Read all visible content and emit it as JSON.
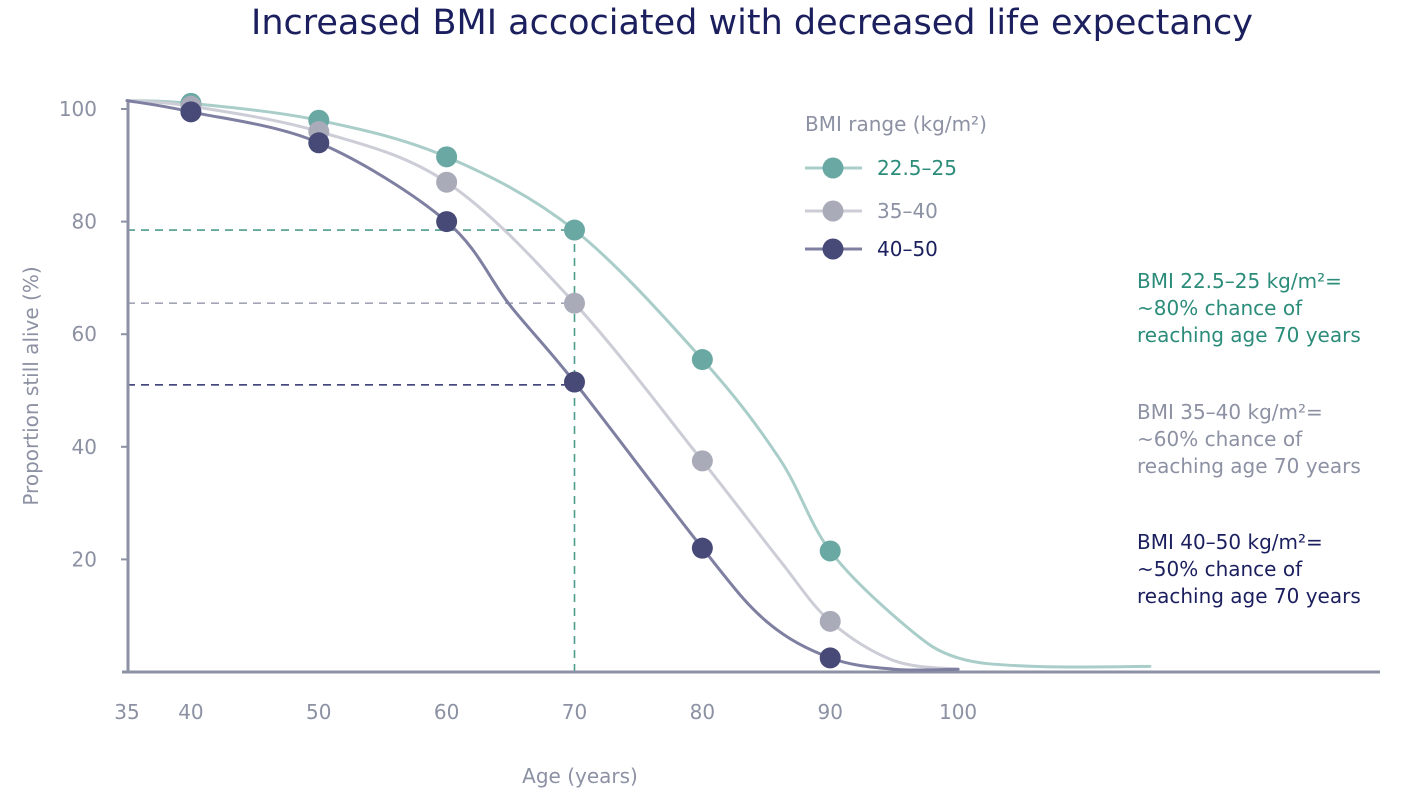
{
  "chart_data": {
    "type": "line",
    "title": "Increased BMI accociated with decreased life expectancy",
    "xlabel": "Age (years)",
    "ylabel": "Proportion still alive (%)",
    "xlim": [
      35,
      133
    ],
    "ylim": [
      0,
      100
    ],
    "x_ticks": [
      35,
      40,
      50,
      60,
      70,
      80,
      90,
      100
    ],
    "y_ticks": [
      20,
      40,
      60,
      80,
      100
    ],
    "grid": false,
    "legend": {
      "title": "BMI range (kg/m²)",
      "placement": "top-right"
    },
    "series": [
      {
        "name": "22.5–25",
        "color": "#6aa9a3",
        "line_color": "#a9cdc9",
        "label_color": "#2c8c7a",
        "x": [
          40,
          50,
          60,
          70,
          80,
          90
        ],
        "values": [
          101,
          98,
          91.5,
          78.5,
          55.5,
          21.5
        ],
        "curve_x": [
          35,
          40,
          50,
          60,
          70,
          80,
          86,
          90,
          96,
          100,
          106,
          115
        ],
        "curve_y": [
          101.5,
          101,
          98,
          91.5,
          78.5,
          55.5,
          38,
          21.5,
          8,
          2.5,
          1,
          1
        ]
      },
      {
        "name": "35–40",
        "color": "#a9abb9",
        "line_color": "#cccdd6",
        "label_color": "#8c91a3",
        "x": [
          40,
          50,
          60,
          70,
          80,
          90
        ],
        "values": [
          100.5,
          96,
          87,
          65.5,
          37.5,
          9
        ],
        "curve_x": [
          35,
          40,
          50,
          60,
          70,
          80,
          86,
          90,
          95,
          100
        ],
        "curve_y": [
          101.5,
          100.5,
          96,
          87,
          65.5,
          37.5,
          20,
          9,
          2,
          0.5
        ]
      },
      {
        "name": "40–50",
        "color": "#474977",
        "line_color": "#7e7fa1",
        "label_color": "#1b1f5e",
        "x": [
          40,
          50,
          60,
          70,
          80,
          90
        ],
        "values": [
          99.5,
          94,
          80,
          51.5,
          22,
          2.5
        ],
        "curve_x": [
          35,
          40,
          50,
          60,
          65,
          70,
          80,
          85,
          90,
          95,
          100
        ],
        "curve_y": [
          101.5,
          99.5,
          94,
          80,
          65,
          51.5,
          22,
          9,
          2.5,
          0.5,
          0.5
        ]
      }
    ],
    "reference_lines": [
      {
        "series": "22.5–25",
        "x": 70,
        "y": 78.5,
        "color": "#4d9c8c",
        "vertical": true
      },
      {
        "series": "35–40",
        "x": 70,
        "y": 65.5,
        "color": "#a2a5b4",
        "vertical": false
      },
      {
        "series": "40–50",
        "x": 70,
        "y": 51,
        "color": "#2a2e6d",
        "vertical": false
      }
    ],
    "annotations": [
      {
        "color": "#2c8c7a",
        "lines": [
          "BMI 22.5–25 kg/m²=",
          "~80% chance of",
          "reaching age 70 years"
        ]
      },
      {
        "color": "#8c91a3",
        "lines": [
          "BMI 35–40 kg/m²=",
          "~60% chance of",
          "reaching age 70 years"
        ]
      },
      {
        "color": "#1b1f5e",
        "lines": [
          "BMI 40–50 kg/m²=",
          "~50% chance of",
          "reaching age 70 years"
        ]
      }
    ]
  }
}
